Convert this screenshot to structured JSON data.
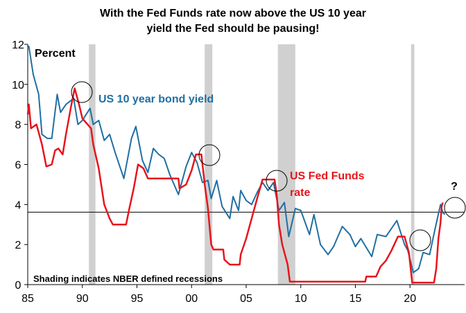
{
  "chart_data": {
    "type": "line",
    "title": [
      "With the Fed Funds rate now above the US 10 year",
      "yield the Fed should be pausing!"
    ],
    "y_label": "Percent",
    "note": "Shading indicates NBER defined recessions",
    "annotation": "?",
    "xlim": [
      1985,
      2025
    ],
    "xticks": [
      {
        "value": 1985,
        "label": "85"
      },
      {
        "value": 1990,
        "label": "90"
      },
      {
        "value": 1995,
        "label": "95"
      },
      {
        "value": 2000,
        "label": "00"
      },
      {
        "value": 2005,
        "label": "05"
      },
      {
        "value": 2010,
        "label": "10"
      },
      {
        "value": 2015,
        "label": "15"
      },
      {
        "value": 2020,
        "label": "20"
      }
    ],
    "ylim": [
      0,
      12
    ],
    "yticks": [
      0,
      2,
      4,
      6,
      8,
      10,
      12
    ],
    "reference_line": 3.62,
    "recessions": [
      [
        1990.6,
        1991.2
      ],
      [
        2001.2,
        2001.9
      ],
      [
        2007.9,
        2009.5
      ],
      [
        2020.1,
        2020.4
      ]
    ],
    "recession_color": "#d0d0d0",
    "series": [
      {
        "name": "US 10 year bond yield",
        "color": "#1f6fa3",
        "x": [
          1985.0,
          1985.1,
          1985.5,
          1986.0,
          1986.3,
          1986.8,
          1987.2,
          1987.7,
          1988.0,
          1988.5,
          1989.2,
          1989.6,
          1990.0,
          1990.7,
          1991.0,
          1991.5,
          1992.0,
          1992.5,
          1993.0,
          1993.8,
          1994.5,
          1994.9,
          1995.5,
          1996.0,
          1996.5,
          1997.0,
          1997.5,
          1998.0,
          1998.8,
          1999.5,
          2000.0,
          2000.5,
          2001.0,
          2001.5,
          2001.8,
          2002.3,
          2002.8,
          2003.5,
          2003.8,
          2004.3,
          2004.5,
          2005.0,
          2005.5,
          2006.0,
          2006.5,
          2007.0,
          2007.5,
          2008.0,
          2008.5,
          2008.9,
          2009.5,
          2010.0,
          2010.8,
          2011.2,
          2011.8,
          2012.5,
          2013.0,
          2013.8,
          2014.5,
          2015.0,
          2015.5,
          2016.5,
          2017.0,
          2017.8,
          2018.8,
          2019.5,
          2019.8,
          2020.3,
          2020.8,
          2021.2,
          2021.8,
          2022.3,
          2022.8,
          2023.0,
          2023.2
        ],
        "values": [
          11.8,
          11.9,
          10.5,
          9.5,
          7.5,
          7.3,
          7.3,
          9.5,
          8.6,
          9.0,
          9.3,
          8.0,
          8.2,
          8.8,
          8.0,
          8.2,
          7.2,
          7.5,
          6.6,
          5.3,
          7.3,
          7.9,
          6.2,
          5.6,
          6.8,
          6.5,
          6.3,
          5.5,
          4.5,
          5.9,
          6.6,
          6.1,
          5.1,
          5.2,
          4.3,
          5.2,
          3.9,
          3.3,
          4.4,
          3.7,
          4.7,
          4.2,
          4.0,
          4.6,
          5.1,
          4.7,
          5.1,
          3.7,
          4.1,
          2.4,
          3.8,
          3.7,
          2.5,
          3.5,
          2.0,
          1.5,
          1.9,
          2.9,
          2.5,
          1.9,
          2.3,
          1.4,
          2.5,
          2.4,
          3.2,
          2.0,
          1.7,
          0.6,
          0.8,
          1.6,
          1.5,
          2.8,
          4.0,
          3.6,
          3.5
        ]
      },
      {
        "name": "US Fed Funds rate",
        "color": "#e8141c",
        "x": [
          1985.0,
          1985.1,
          1985.3,
          1985.8,
          1986.3,
          1986.7,
          1987.2,
          1987.5,
          1987.8,
          1988.2,
          1988.5,
          1989.0,
          1989.3,
          1989.7,
          1990.0,
          1990.8,
          1991.0,
          1991.5,
          1992.0,
          1992.5,
          1992.8,
          1994.0,
          1994.3,
          1994.7,
          1995.1,
          1995.6,
          1996.0,
          1998.8,
          1998.9,
          1999.5,
          2000.0,
          2000.4,
          2000.9,
          2001.2,
          2001.5,
          2001.8,
          2002.0,
          2002.9,
          2003.0,
          2003.5,
          2004.4,
          2004.5,
          2005.0,
          2005.5,
          2006.0,
          2006.5,
          2007.6,
          2007.8,
          2008.0,
          2008.3,
          2008.8,
          2009.0,
          2015.9,
          2016.0,
          2016.9,
          2017.3,
          2017.8,
          2018.3,
          2018.9,
          2019.5,
          2019.9,
          2020.2,
          2022.2,
          2022.4,
          2022.6,
          2022.8,
          2022.9,
          2023.0
        ],
        "values": [
          8.5,
          9.0,
          7.8,
          8.0,
          7.0,
          5.9,
          6.0,
          6.7,
          6.8,
          6.5,
          7.5,
          9.0,
          9.8,
          9.0,
          8.3,
          7.8,
          7.0,
          5.8,
          4.0,
          3.3,
          3.0,
          3.0,
          3.8,
          4.8,
          6.0,
          5.8,
          5.3,
          5.3,
          4.8,
          5.0,
          5.7,
          6.5,
          6.5,
          5.0,
          3.8,
          2.0,
          1.75,
          1.75,
          1.25,
          1.0,
          1.0,
          1.5,
          2.3,
          3.3,
          4.3,
          5.25,
          5.25,
          4.5,
          3.0,
          2.0,
          1.0,
          0.15,
          0.15,
          0.4,
          0.4,
          0.9,
          1.2,
          1.7,
          2.4,
          2.4,
          1.6,
          0.1,
          0.1,
          0.8,
          2.3,
          3.1,
          3.9,
          4.1
        ]
      }
    ]
  }
}
